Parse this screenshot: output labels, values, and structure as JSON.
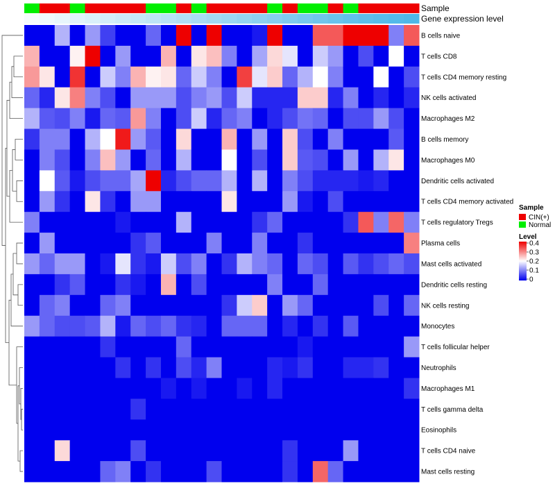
{
  "chart_data": {
    "type": "heatmap",
    "title": "",
    "annotation_tracks": [
      "Sample",
      "Gene expression level"
    ],
    "row_labels": [
      "B cells naive",
      "T cells CD8",
      "T cells CD4 memory resting",
      "NK cells activated",
      "Macrophages M2",
      "B cells memory",
      "Macrophages M0",
      "Dendritic cells activated",
      "T cells CD4 memory activated",
      "T cells regulatory  Tregs",
      "Plasma cells",
      "Mast cells activated",
      "Dendritic cells resting",
      "NK cells resting",
      "Monocytes",
      "T cells follicular helper",
      "Neutrophils",
      "Macrophages M1",
      "T cells gamma delta",
      "Eosinophils",
      "T cells CD4 naive",
      "Mast cells resting"
    ],
    "sample_groups": [
      "N",
      "C",
      "C",
      "N",
      "C",
      "C",
      "C",
      "C",
      "N",
      "N",
      "C",
      "N",
      "C",
      "C",
      "C",
      "C",
      "N",
      "C",
      "N",
      "N",
      "C",
      "N",
      "C",
      "C",
      "C",
      "C"
    ],
    "gene_expression_level": [
      0.05,
      0.09,
      0.13,
      0.17,
      0.21,
      0.25,
      0.29,
      0.33,
      0.37,
      0.41,
      0.45,
      0.49,
      0.53,
      0.57,
      0.61,
      0.65,
      0.69,
      0.73,
      0.77,
      0.81,
      0.85,
      0.89,
      0.92,
      0.95,
      0.97,
      1.0
    ],
    "values": [
      [
        0.0,
        0.0,
        0.14,
        0.0,
        0.12,
        0.05,
        0.0,
        0.0,
        0.08,
        0.0,
        0.4,
        0.0,
        0.4,
        0.0,
        0.0,
        0.02,
        0.4,
        0.0,
        0.0,
        0.33,
        0.33,
        0.4,
        0.4,
        0.4,
        0.1,
        0.33
      ],
      [
        0.26,
        0.0,
        0.0,
        0.21,
        0.4,
        0.0,
        0.12,
        0.0,
        0.0,
        0.26,
        0.0,
        0.22,
        0.25,
        0.1,
        0.0,
        0.13,
        0.23,
        0.18,
        0.0,
        0.16,
        0.12,
        0.0,
        0.06,
        0.0,
        0.2,
        0.0
      ],
      [
        0.28,
        0.22,
        0.0,
        0.36,
        0.0,
        0.16,
        0.1,
        0.26,
        0.21,
        0.22,
        0.08,
        0.16,
        0.1,
        0.0,
        0.35,
        0.18,
        0.24,
        0.08,
        0.14,
        0.2,
        0.1,
        0.0,
        0.0,
        0.2,
        0.0,
        0.06
      ],
      [
        0.08,
        0.03,
        0.22,
        0.3,
        0.1,
        0.06,
        0.0,
        0.12,
        0.12,
        0.12,
        0.06,
        0.1,
        0.12,
        0.06,
        0.16,
        0.03,
        0.03,
        0.03,
        0.24,
        0.24,
        0.03,
        0.1,
        0.0,
        0.03,
        0.0,
        0.03
      ],
      [
        0.14,
        0.07,
        0.06,
        0.1,
        0.02,
        0.08,
        0.07,
        0.28,
        0.1,
        0.0,
        0.06,
        0.16,
        0.03,
        0.08,
        0.1,
        0.0,
        0.03,
        0.06,
        0.09,
        0.08,
        0.0,
        0.06,
        0.06,
        0.12,
        0.06,
        0.0
      ],
      [
        0.04,
        0.1,
        0.1,
        0.0,
        0.14,
        0.2,
        0.38,
        0.12,
        0.07,
        0.0,
        0.23,
        0.0,
        0.0,
        0.26,
        0.0,
        0.12,
        0.0,
        0.24,
        0.06,
        0.0,
        0.1,
        0.0,
        0.0,
        0.0,
        0.07,
        0.0
      ],
      [
        0.0,
        0.1,
        0.06,
        0.0,
        0.1,
        0.25,
        0.12,
        0.0,
        0.08,
        0.0,
        0.14,
        0.0,
        0.0,
        0.2,
        0.0,
        0.06,
        0.0,
        0.24,
        0.07,
        0.06,
        0.0,
        0.12,
        0.0,
        0.14,
        0.22,
        0.0
      ],
      [
        0.0,
        0.2,
        0.07,
        0.02,
        0.06,
        0.08,
        0.08,
        0.13,
        0.4,
        0.03,
        0.06,
        0.08,
        0.08,
        0.14,
        0.0,
        0.14,
        0.0,
        0.1,
        0.06,
        0.03,
        0.03,
        0.03,
        0.02,
        0.03,
        0.0,
        0.0
      ],
      [
        0.0,
        0.12,
        0.04,
        0.0,
        0.22,
        0.04,
        0.0,
        0.12,
        0.12,
        0.0,
        0.0,
        0.0,
        0.0,
        0.22,
        0.0,
        0.0,
        0.0,
        0.12,
        0.02,
        0.0,
        0.06,
        0.0,
        0.0,
        0.0,
        0.0,
        0.0
      ],
      [
        0.1,
        0.0,
        0.0,
        0.0,
        0.0,
        0.0,
        0.02,
        0.0,
        0.0,
        0.0,
        0.14,
        0.0,
        0.0,
        0.0,
        0.0,
        0.04,
        0.08,
        0.0,
        0.0,
        0.0,
        0.0,
        0.04,
        0.33,
        0.1,
        0.32,
        0.1
      ],
      [
        0.0,
        0.12,
        0.0,
        0.0,
        0.0,
        0.0,
        0.0,
        0.04,
        0.07,
        0.0,
        0.0,
        0.0,
        0.1,
        0.0,
        0.0,
        0.1,
        0.0,
        0.0,
        0.04,
        0.0,
        0.0,
        0.0,
        0.0,
        0.0,
        0.0,
        0.3
      ],
      [
        0.12,
        0.08,
        0.12,
        0.12,
        0.0,
        0.02,
        0.18,
        0.04,
        0.02,
        0.16,
        0.06,
        0.1,
        0.0,
        0.04,
        0.14,
        0.1,
        0.08,
        0.0,
        0.08,
        0.06,
        0.0,
        0.07,
        0.04,
        0.06,
        0.08,
        0.06
      ],
      [
        0.0,
        0.0,
        0.04,
        0.07,
        0.0,
        0.0,
        0.04,
        0.02,
        0.0,
        0.26,
        0.0,
        0.06,
        0.0,
        0.0,
        0.0,
        0.0,
        0.1,
        0.0,
        0.0,
        0.08,
        0.0,
        0.0,
        0.0,
        0.0,
        0.0,
        0.0
      ],
      [
        0.0,
        0.08,
        0.1,
        0.0,
        0.0,
        0.08,
        0.1,
        0.0,
        0.0,
        0.0,
        0.0,
        0.0,
        0.0,
        0.04,
        0.16,
        0.24,
        0.0,
        0.12,
        0.08,
        0.0,
        0.0,
        0.0,
        0.0,
        0.06,
        0.0,
        0.08
      ],
      [
        0.12,
        0.08,
        0.06,
        0.06,
        0.07,
        0.14,
        0.02,
        0.08,
        0.06,
        0.08,
        0.04,
        0.03,
        0.0,
        0.08,
        0.08,
        0.08,
        0.0,
        0.03,
        0.0,
        0.04,
        0.0,
        0.07,
        0.0,
        0.0,
        0.0,
        0.0
      ],
      [
        0.0,
        0.0,
        0.0,
        0.0,
        0.0,
        0.04,
        0.0,
        0.0,
        0.0,
        0.0,
        0.08,
        0.0,
        0.0,
        0.0,
        0.0,
        0.0,
        0.0,
        0.0,
        0.02,
        0.0,
        0.0,
        0.0,
        0.0,
        0.0,
        0.0,
        0.12
      ],
      [
        0.0,
        0.0,
        0.0,
        0.0,
        0.0,
        0.0,
        0.04,
        0.0,
        0.04,
        0.0,
        0.06,
        0.03,
        0.1,
        0.0,
        0.0,
        0.0,
        0.03,
        0.02,
        0.04,
        0.0,
        0.0,
        0.03,
        0.03,
        0.04,
        0.0,
        0.0
      ],
      [
        0.0,
        0.0,
        0.0,
        0.0,
        0.0,
        0.0,
        0.0,
        0.0,
        0.0,
        0.02,
        0.0,
        0.02,
        0.0,
        0.0,
        0.02,
        0.0,
        0.03,
        0.0,
        0.0,
        0.0,
        0.0,
        0.0,
        0.0,
        0.0,
        0.0,
        0.04
      ],
      [
        0.0,
        0.0,
        0.0,
        0.0,
        0.0,
        0.0,
        0.0,
        0.04,
        0.0,
        0.0,
        0.0,
        0.0,
        0.0,
        0.0,
        0.0,
        0.0,
        0.0,
        0.0,
        0.0,
        0.0,
        0.0,
        0.0,
        0.0,
        0.0,
        0.0,
        0.0
      ],
      [
        0.0,
        0.0,
        0.0,
        0.0,
        0.0,
        0.0,
        0.0,
        0.0,
        0.0,
        0.0,
        0.0,
        0.0,
        0.0,
        0.0,
        0.0,
        0.0,
        0.0,
        0.0,
        0.0,
        0.0,
        0.0,
        0.0,
        0.0,
        0.0,
        0.0,
        0.0
      ],
      [
        0.0,
        0.0,
        0.23,
        0.0,
        0.0,
        0.0,
        0.0,
        0.06,
        0.0,
        0.0,
        0.0,
        0.0,
        0.0,
        0.0,
        0.0,
        0.0,
        0.0,
        0.04,
        0.0,
        0.0,
        0.0,
        0.12,
        0.0,
        0.0,
        0.0,
        0.0
      ],
      [
        0.0,
        0.0,
        0.0,
        0.0,
        0.0,
        0.08,
        0.1,
        0.0,
        0.04,
        0.0,
        0.0,
        0.0,
        0.06,
        0.0,
        0.0,
        0.0,
        0.0,
        0.04,
        0.0,
        0.32,
        0.08,
        0.0,
        0.0,
        0.0,
        0.0,
        0.0
      ]
    ],
    "legend_sample": {
      "title": "Sample",
      "entries": [
        {
          "label": "CIN(+)",
          "color": "#ee0000"
        },
        {
          "label": "Normal",
          "color": "#00ee00"
        }
      ]
    },
    "legend_level": {
      "title": "Level",
      "ticks": [
        "0.4",
        "0.3",
        "0.2",
        "0.1",
        "0"
      ],
      "range": [
        0,
        0.4
      ]
    },
    "color_scale": {
      "low": "#0000ee",
      "mid": "#ffffff",
      "high": "#ee0000"
    },
    "annotation_scale": {
      "low": "#ffffff",
      "high": "#4fb8e8"
    }
  }
}
